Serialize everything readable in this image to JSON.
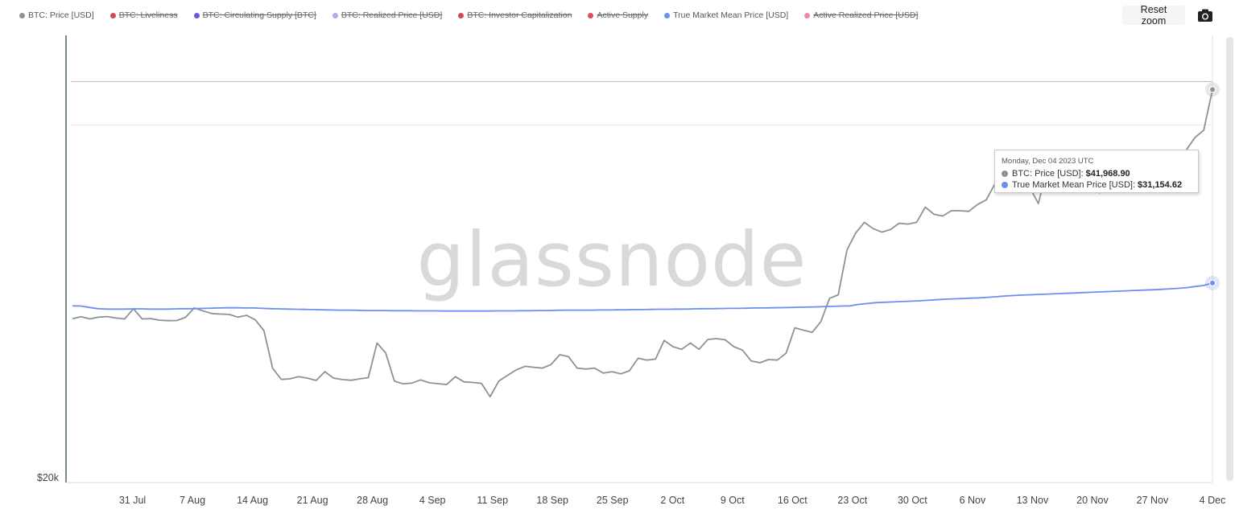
{
  "legend": [
    {
      "label": "BTC: Price [USD]",
      "color": "#8a9496",
      "hidden": false
    },
    {
      "label": "BTC: Liveliness",
      "color": "#d24a5c",
      "hidden": true
    },
    {
      "label": "BTC: Circulating Supply [BTC]",
      "color": "#6b5bd6",
      "hidden": true
    },
    {
      "label": "BTC: Realized Price [USD]",
      "color": "#b6a9ea",
      "hidden": true
    },
    {
      "label": "BTC: Investor Capitalization",
      "color": "#d24a5c",
      "hidden": true
    },
    {
      "label": "Active Supply",
      "color": "#e0495e",
      "hidden": true
    },
    {
      "label": "True Market Mean Price [USD]",
      "color": "#6d8ff0",
      "hidden": false
    },
    {
      "label": "Active Realized Price [USD]",
      "color": "#f08aa0",
      "hidden": true
    }
  ],
  "toolbar": {
    "reset_zoom_label": "Reset zoom",
    "camera_icon": "camera-icon"
  },
  "watermark": "glassnode",
  "tooltip": {
    "date": "Monday, Dec 04 2023 UTC",
    "rows": [
      {
        "label": "BTC: Price [USD]:",
        "value": "$41,968.90",
        "color": "#8a9496"
      },
      {
        "label": "True Market Mean Price [USD]:",
        "value": "$31,154.62",
        "color": "#6d8ff0"
      }
    ]
  },
  "chart_data": {
    "type": "line",
    "x_start": "2023-07-24",
    "x_end": "2023-12-04",
    "xticks": [
      "31 Jul",
      "7 Aug",
      "14 Aug",
      "21 Aug",
      "28 Aug",
      "4 Sep",
      "11 Sep",
      "18 Sep",
      "25 Sep",
      "2 Oct",
      "9 Oct",
      "16 Oct",
      "23 Oct",
      "30 Oct",
      "6 Nov",
      "13 Nov",
      "20 Nov",
      "27 Nov",
      "4 Dec"
    ],
    "ytick_labels": [
      "$20k"
    ],
    "ylim": [
      20000,
      45000
    ],
    "series": [
      {
        "name": "BTC: Price [USD]",
        "color": "#8a9496",
        "values": [
          29160,
          29270,
          29150,
          29250,
          29280,
          29200,
          29150,
          29720,
          29150,
          29170,
          29080,
          29050,
          29060,
          29240,
          29760,
          29600,
          29450,
          29420,
          29400,
          29250,
          29350,
          29100,
          28500,
          26400,
          25770,
          25800,
          25920,
          25840,
          25710,
          26200,
          25840,
          25760,
          25720,
          25800,
          25870,
          27800,
          27250,
          25670,
          25520,
          25560,
          25740,
          25580,
          25530,
          25480,
          25920,
          25630,
          25600,
          25550,
          24800,
          25680,
          26000,
          26300,
          26500,
          26450,
          26400,
          26600,
          27150,
          27040,
          26400,
          26350,
          26400,
          26120,
          26200,
          26080,
          26250,
          26950,
          26850,
          26900,
          27950,
          27600,
          27450,
          27800,
          27450,
          28000,
          28050,
          27980,
          27600,
          27400,
          26800,
          26700,
          26880,
          26850,
          27230,
          28650,
          28520,
          28400,
          29000,
          30300,
          30500,
          33000,
          33950,
          34550,
          34200,
          34000,
          34150,
          34500,
          34450,
          34550,
          35400,
          35000,
          34900,
          35200,
          35200,
          35160,
          35550,
          35800,
          36700,
          37200,
          37040,
          36990,
          36500,
          35600,
          37600,
          36300,
          36650,
          36680,
          37450,
          37450,
          36200,
          37650,
          37500,
          37800,
          37950,
          37700,
          37550,
          37900,
          37900,
          37860,
          38600,
          39300,
          39700,
          41968.9
        ]
      },
      {
        "name": "True Market Mean Price [USD]",
        "color": "#6d8ff0",
        "values": [
          29880,
          29870,
          29790,
          29720,
          29700,
          29700,
          29700,
          29710,
          29710,
          29700,
          29700,
          29700,
          29710,
          29720,
          29720,
          29740,
          29750,
          29760,
          29770,
          29770,
          29760,
          29760,
          29740,
          29720,
          29710,
          29700,
          29690,
          29680,
          29670,
          29660,
          29650,
          29640,
          29640,
          29630,
          29620,
          29620,
          29620,
          29610,
          29610,
          29610,
          29600,
          29600,
          29600,
          29590,
          29590,
          29590,
          29590,
          29590,
          29590,
          29600,
          29600,
          29600,
          29610,
          29610,
          29620,
          29620,
          29630,
          29640,
          29640,
          29640,
          29640,
          29650,
          29650,
          29660,
          29660,
          29670,
          29670,
          29680,
          29690,
          29690,
          29700,
          29700,
          29710,
          29720,
          29720,
          29730,
          29740,
          29740,
          29750,
          29760,
          29760,
          29770,
          29780,
          29790,
          29800,
          29810,
          29820,
          29840,
          29850,
          29870,
          29880,
          29960,
          30010,
          30060,
          30080,
          30100,
          30120,
          30140,
          30160,
          30190,
          30220,
          30250,
          30270,
          30290,
          30310,
          30330,
          30360,
          30390,
          30430,
          30460,
          30480,
          30500,
          30520,
          30540,
          30560,
          30580,
          30600,
          30620,
          30640,
          30660,
          30680,
          30700,
          30720,
          30740,
          30760,
          30780,
          30800,
          30830,
          30860,
          30900,
          30960,
          31020,
          31154.62
        ]
      }
    ]
  }
}
